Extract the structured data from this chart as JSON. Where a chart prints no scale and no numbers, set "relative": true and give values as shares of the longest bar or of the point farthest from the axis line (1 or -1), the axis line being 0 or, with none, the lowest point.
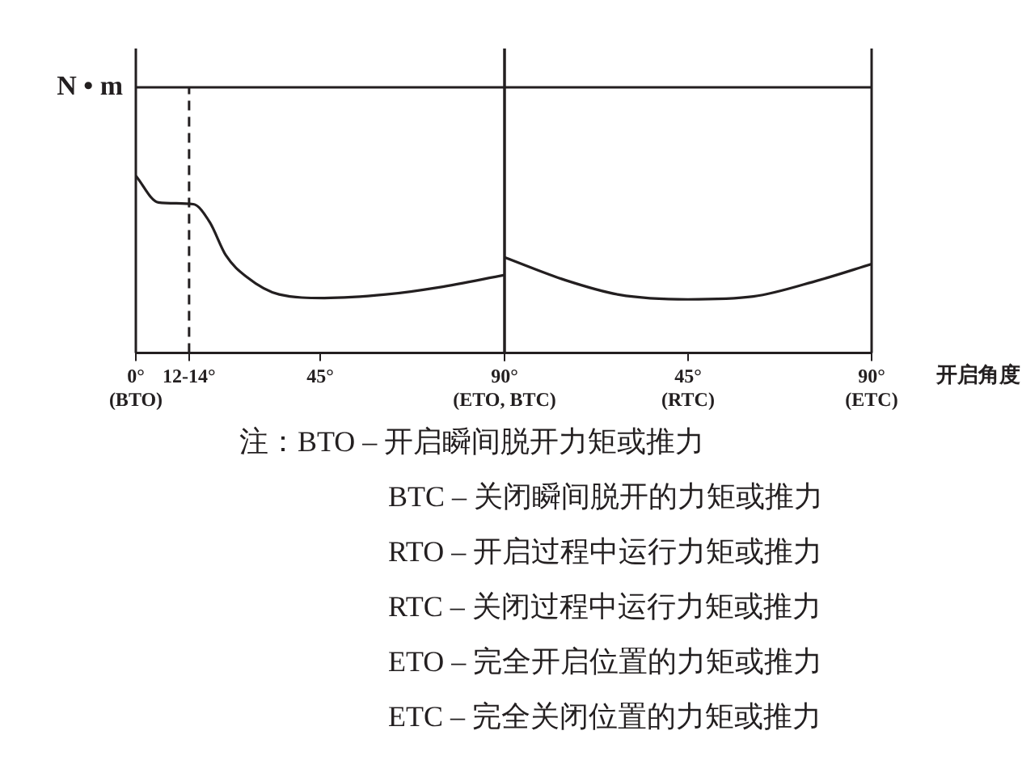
{
  "chart_data": [
    {
      "type": "line",
      "relative": true,
      "ylabel": "N • m",
      "xlim": [
        0,
        90
      ],
      "xticks": [
        {
          "value": 0,
          "label": "0° (BTO)"
        },
        {
          "value": 13,
          "label": "12-14°"
        },
        {
          "value": 45,
          "label": "45°"
        },
        {
          "value": 90,
          "label": "90° (ETO, BTC)"
        }
      ],
      "series": [
        {
          "color": "#231f20",
          "x": [
            0,
            5.5,
            14,
            18,
            22,
            27,
            35,
            46,
            61,
            74,
            90
          ],
          "values": [
            1.0,
            0.85,
            0.84,
            0.74,
            0.55,
            0.43,
            0.33,
            0.31,
            0.33,
            0.37,
            0.44
          ]
        }
      ],
      "ref_lines": [
        {
          "axis": "x",
          "value": 13,
          "line_style": "dashed",
          "color": "#231f20"
        },
        {
          "axis": "x",
          "value": 90,
          "line_style": "solid",
          "color": "#231f20"
        }
      ]
    },
    {
      "type": "line",
      "relative": true,
      "xlabel": "开启角度",
      "xlim": [
        0,
        90
      ],
      "xticks": [
        {
          "value": 0,
          "label": null
        },
        {
          "value": 45,
          "label": "45° (RTC)"
        },
        {
          "value": 90,
          "label": "90° (ETC)"
        }
      ],
      "series": [
        {
          "color": "#231f20",
          "x": [
            0,
            15,
            28,
            45,
            61,
            77,
            90
          ],
          "values": [
            1.0,
            0.76,
            0.61,
            0.56,
            0.59,
            0.76,
            0.93
          ]
        }
      ],
      "ref_lines": [
        {
          "axis": "x",
          "value": 90,
          "line_style": "solid",
          "color": "#231f20"
        }
      ],
      "annotations": [
        "注：BTO – 开启瞬间脱开力矩或推力",
        "BTC – 关闭瞬间脱开的力矩或推力",
        "RTO – 开启过程中运行力矩或推力",
        "RTC – 关闭过程中运行力矩或推力",
        "ETO – 完全开启位置的力矩或推力",
        "ETC – 完全关闭位置的力矩或推力"
      ]
    }
  ]
}
